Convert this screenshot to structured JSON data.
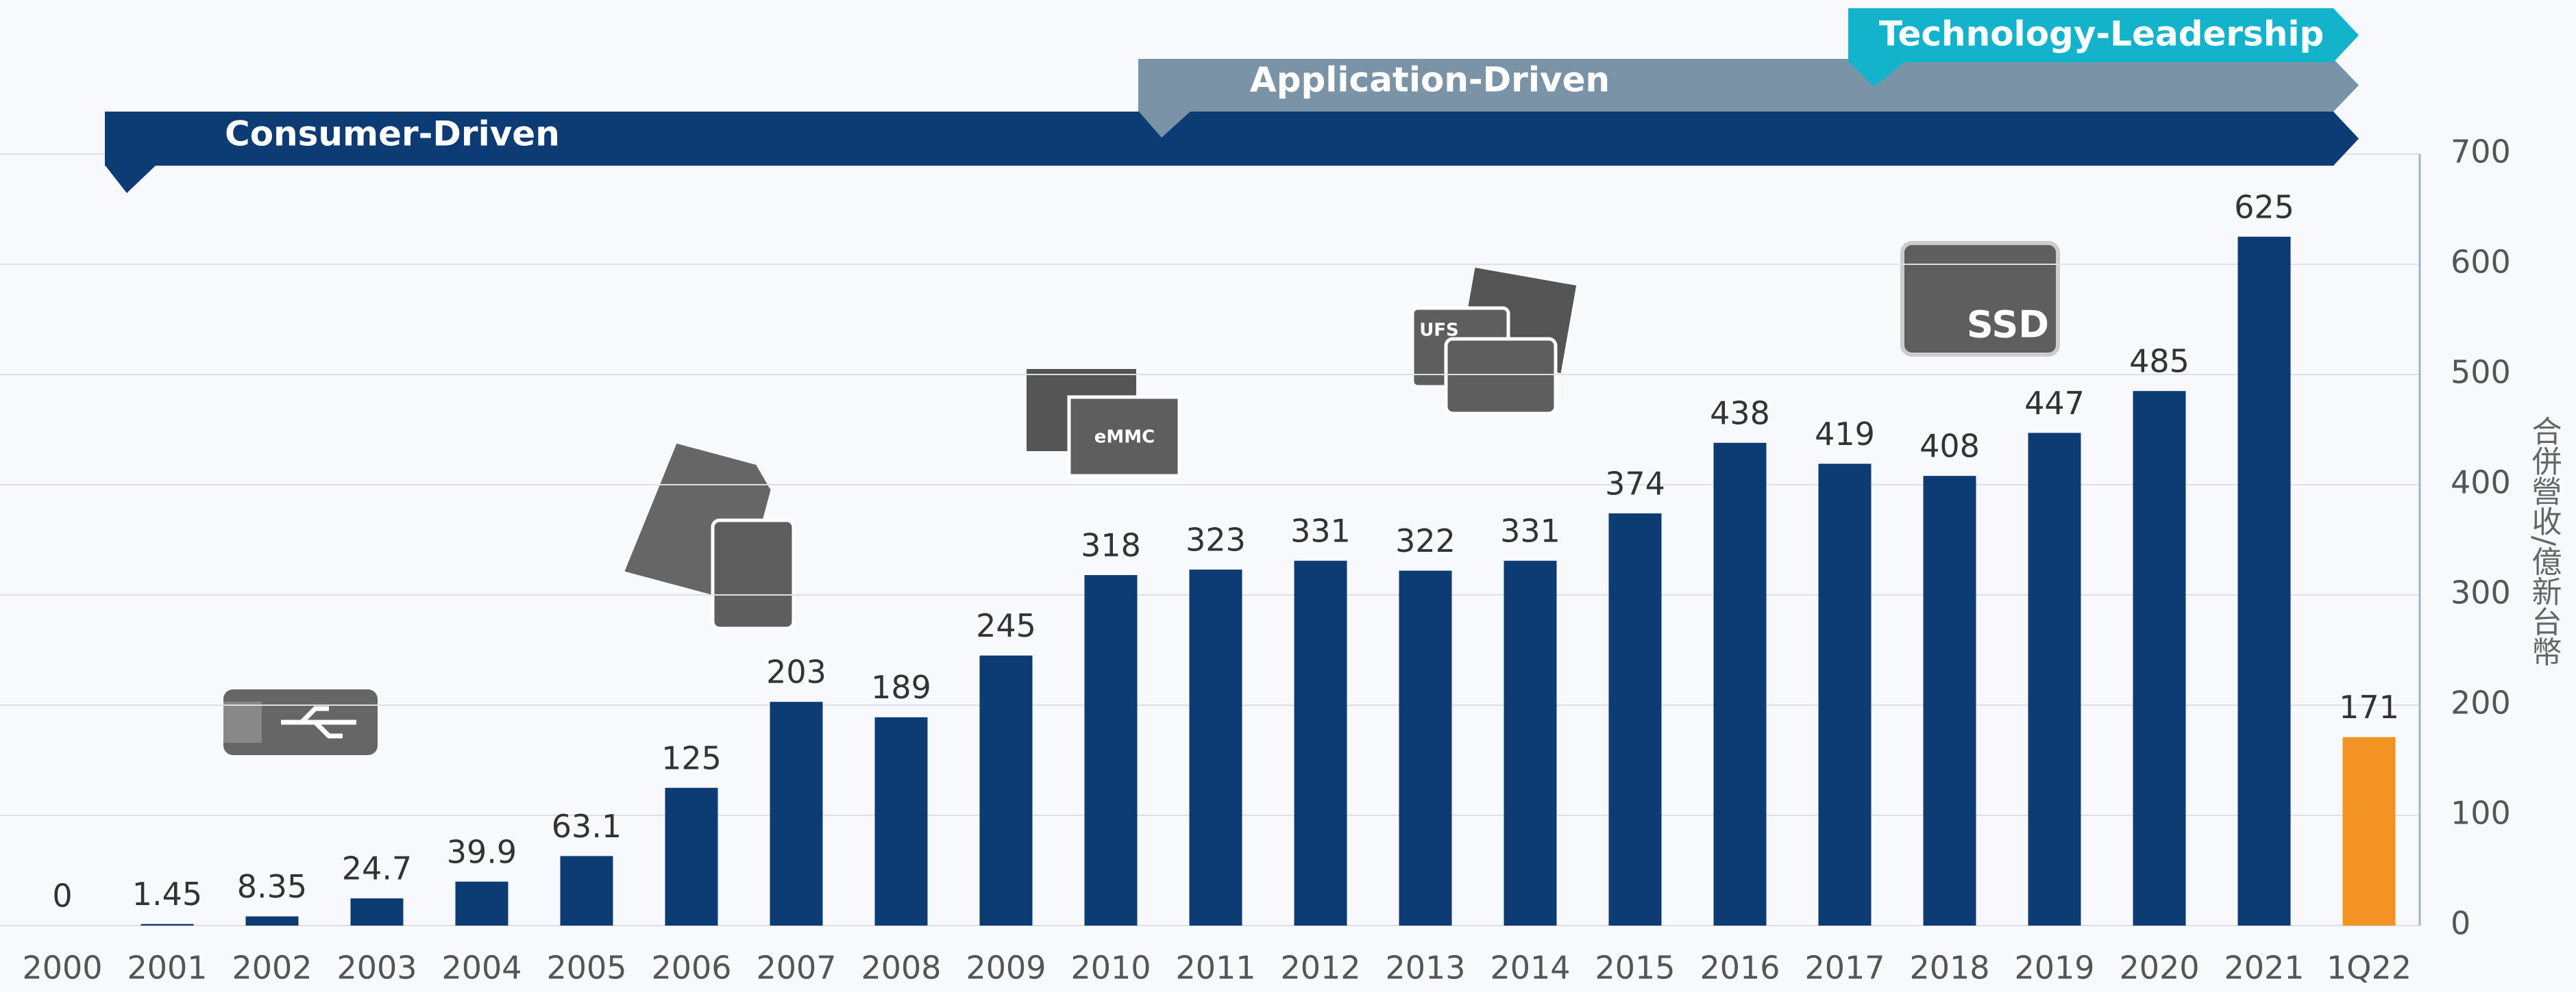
{
  "chart_data": {
    "type": "bar",
    "phases": [
      "Consumer-Driven",
      "Application-Driven",
      "Technology-Leadership"
    ],
    "phase_colors": [
      "#0d3b73",
      "#7a93a6",
      "#13b3cb"
    ],
    "y_label": "合併營收/億新台幣",
    "icon_labels": [
      "eMMC",
      "UFS",
      "SSD"
    ],
    "categories": [
      "2000",
      "2001",
      "2002",
      "2003",
      "2004",
      "2005",
      "2006",
      "2007",
      "2008",
      "2009",
      "2010",
      "2011",
      "2012",
      "2013",
      "2014",
      "2015",
      "2016",
      "2017",
      "2018",
      "2019",
      "2020",
      "2021",
      "1Q22"
    ],
    "values": [
      0,
      1.45,
      8.35,
      24.7,
      39.9,
      63.1,
      125,
      203,
      189,
      245,
      318,
      323,
      331,
      322,
      331,
      374,
      438,
      419,
      408,
      447,
      485,
      625,
      171
    ],
    "colors": [
      "#0d3b73",
      "#0d3b73",
      "#0d3b73",
      "#0d3b73",
      "#0d3b73",
      "#0d3b73",
      "#0d3b73",
      "#0d3b73",
      "#0d3b73",
      "#0d3b73",
      "#0d3b73",
      "#0d3b73",
      "#0d3b73",
      "#0d3b73",
      "#0d3b73",
      "#0d3b73",
      "#0d3b73",
      "#0d3b73",
      "#0d3b73",
      "#0d3b73",
      "#0d3b73",
      "#0d3b73",
      "#f39323"
    ],
    "ylim": [
      0,
      700
    ],
    "yticks": [
      0,
      100,
      200,
      300,
      400,
      500,
      600,
      700
    ],
    "grid": true,
    "y_axis_side": "right"
  }
}
